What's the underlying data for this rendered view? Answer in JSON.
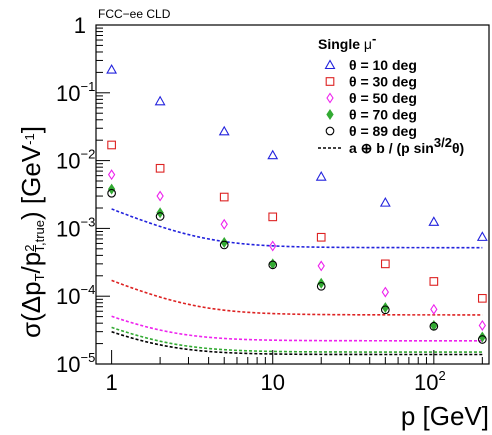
{
  "experiment_label": "FCC−ee CLD",
  "chart_data": {
    "type": "scatter",
    "x_scale": "log",
    "y_scale": "log",
    "xlim": [
      0.8,
      220
    ],
    "ylim": [
      1e-05,
      1
    ],
    "grid": false,
    "legend_position": "top-right",
    "xlabel": "p [GeV]",
    "ylabel": {
      "prefix": "σ(Δp",
      "sub1": "T",
      "mid": "/p",
      "sup2": "2",
      "sub2": "T,true",
      "suffix": ") [GeV",
      "sup_unit": "-1",
      "end": "]"
    },
    "x_ticks": [
      {
        "value": 1,
        "base": "1",
        "sup": ""
      },
      {
        "value": 10,
        "base": "10",
        "sup": ""
      },
      {
        "value": 100,
        "base": "10",
        "sup": "2"
      }
    ],
    "y_ticks": [
      {
        "value": 1,
        "base": "1",
        "sup": ""
      },
      {
        "value": 0.1,
        "base": "10",
        "sup": "−1"
      },
      {
        "value": 0.01,
        "base": "10",
        "sup": "−2"
      },
      {
        "value": 0.001,
        "base": "10",
        "sup": "−3"
      },
      {
        "value": 0.0001,
        "base": "10",
        "sup": "−4"
      },
      {
        "value": 1e-05,
        "base": "10",
        "sup": "−5"
      }
    ],
    "legend_title": {
      "text": "Single ",
      "particle": "μ",
      "charge": "-"
    },
    "fit_legend": {
      "text": "a ⊕ b / (p sin",
      "sup": "3/2",
      "end": "θ)"
    },
    "x": [
      1,
      2,
      5,
      10,
      20,
      50,
      100,
      200
    ],
    "series": [
      {
        "name": "θ = 10 deg",
        "marker": "triangle",
        "color": "#2222dd",
        "values": [
          0.22,
          0.075,
          0.027,
          0.012,
          0.0058,
          0.0024,
          0.00125,
          0.00075
        ],
        "fit": {
          "a": 0.00052,
          "b": 0.000135,
          "sin": 0.17365
        }
      },
      {
        "name": "θ = 30 deg",
        "marker": "square",
        "color": "#dd2222",
        "values": [
          0.017,
          0.0077,
          0.0029,
          0.00148,
          0.00074,
          0.0003,
          0.000165,
          9.3e-05
        ],
        "fit": {
          "a": 5.3e-05,
          "b": 5.75e-05,
          "sin": 0.5
        }
      },
      {
        "name": "θ = 50 deg",
        "marker": "diamond",
        "color": "#ee22ee",
        "values": [
          0.0062,
          0.003,
          0.00115,
          0.00055,
          0.00028,
          0.000115,
          6.4e-05,
          3.7e-05
        ],
        "fit": {
          "a": 2.2e-05,
          "b": 3.05e-05,
          "sin": 0.76604
        }
      },
      {
        "name": "θ = 70 deg",
        "marker": "filled-diamond",
        "color": "#33aa33",
        "values": [
          0.0038,
          0.0017,
          0.00062,
          0.0003,
          0.000155,
          6.8e-05,
          3.7e-05,
          2.5e-05
        ],
        "fit": {
          "a": 1.5e-05,
          "b": 2.85e-05,
          "sin": 0.93969
        }
      },
      {
        "name": "θ = 89 deg",
        "marker": "circle",
        "color": "#000000",
        "values": [
          0.0033,
          0.0015,
          0.00057,
          0.00029,
          0.00014,
          6.3e-05,
          3.6e-05,
          2.3e-05
        ],
        "fit": {
          "a": 1.38e-05,
          "b": 2.65e-05,
          "sin": 0.99985
        }
      }
    ]
  }
}
